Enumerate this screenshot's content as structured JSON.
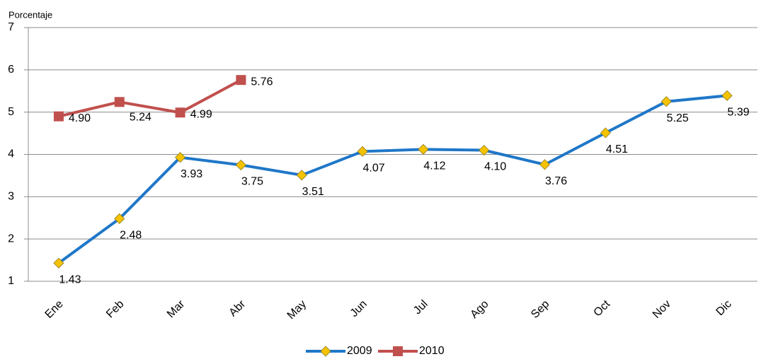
{
  "chart_data": {
    "type": "line",
    "y_label": "Porcentaje",
    "categories": [
      "Ene",
      "Feb",
      "Mar",
      "Abr",
      "May",
      "Jun",
      "Jul",
      "Ago",
      "Sep",
      "Oct",
      "Nov",
      "Dic"
    ],
    "series": [
      {
        "name": "2009",
        "color": "#1f77c8",
        "marker_color": "#f5c200",
        "values": [
          1.43,
          2.48,
          3.93,
          3.75,
          3.51,
          4.07,
          4.12,
          4.1,
          3.76,
          4.51,
          5.25,
          5.39
        ],
        "value_labels": [
          "1.43",
          "2.48",
          "3.93",
          "3.75",
          "3.51",
          "4.07",
          "4.12",
          "4.10",
          "3.76",
          "4.51",
          "5.25",
          "5.39"
        ]
      },
      {
        "name": "2010",
        "color": "#c0504d",
        "marker_color": "#c0504d",
        "values": [
          4.9,
          5.24,
          4.99,
          5.76,
          null,
          null,
          null,
          null,
          null,
          null,
          null,
          null
        ],
        "value_labels": [
          "4.90",
          "5.24",
          "4.99",
          "5.76",
          null,
          null,
          null,
          null,
          null,
          null,
          null,
          null
        ]
      }
    ],
    "ylim": [
      1,
      7
    ],
    "yticks": [
      1,
      2,
      3,
      4,
      5,
      6,
      7
    ],
    "grid": true,
    "legend": "bottom"
  }
}
